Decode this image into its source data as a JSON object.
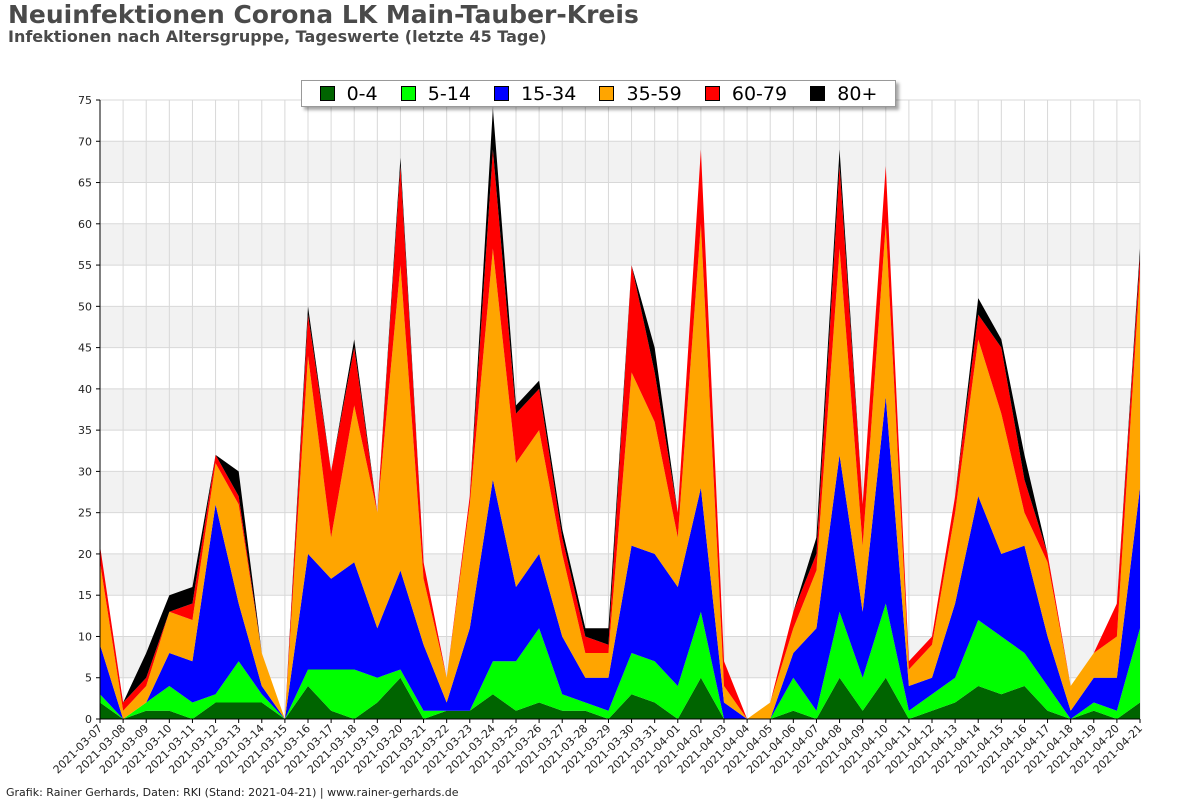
{
  "title": "Neuinfektionen Corona LK Main-Tauber-Kreis",
  "subtitle": "Infektionen nach Altersgruppe, Tageswerte (letzte 45 Tage)",
  "footer": "Grafik: Rainer Gerhards, Daten: RKI (Stand: 2021-04-21) | www.rainer-gerhards.de",
  "chart_data": {
    "type": "area",
    "stacked": true,
    "ylim": [
      0,
      75
    ],
    "yticks": [
      0,
      5,
      10,
      15,
      20,
      25,
      30,
      35,
      40,
      45,
      50,
      55,
      60,
      65,
      70,
      75
    ],
    "grid": true,
    "legend_position": "top-center",
    "categories": [
      "2021-03-07",
      "2021-03-08",
      "2021-03-09",
      "2021-03-10",
      "2021-03-11",
      "2021-03-12",
      "2021-03-13",
      "2021-03-14",
      "2021-03-15",
      "2021-03-16",
      "2021-03-17",
      "2021-03-18",
      "2021-03-19",
      "2021-03-20",
      "2021-03-21",
      "2021-03-22",
      "2021-03-23",
      "2021-03-24",
      "2021-03-25",
      "2021-03-26",
      "2021-03-27",
      "2021-03-28",
      "2021-03-29",
      "2021-03-30",
      "2021-03-31",
      "2021-04-01",
      "2021-04-02",
      "2021-04-03",
      "2021-04-04",
      "2021-04-05",
      "2021-04-06",
      "2021-04-07",
      "2021-04-08",
      "2021-04-09",
      "2021-04-10",
      "2021-04-11",
      "2021-04-12",
      "2021-04-13",
      "2021-04-14",
      "2021-04-15",
      "2021-04-16",
      "2021-04-17",
      "2021-04-18",
      "2021-04-19",
      "2021-04-20",
      "2021-04-21"
    ],
    "series": [
      {
        "name": "0-4",
        "color": "#006400",
        "values": [
          2,
          0,
          1,
          1,
          0,
          2,
          2,
          2,
          0,
          4,
          1,
          0,
          2,
          5,
          0,
          1,
          1,
          3,
          1,
          2,
          1,
          1,
          0,
          3,
          2,
          0,
          5,
          0,
          0,
          0,
          1,
          0,
          5,
          1,
          5,
          0,
          1,
          2,
          4,
          3,
          4,
          1,
          0,
          1,
          0,
          2
        ]
      },
      {
        "name": "5-14",
        "color": "#00ff00",
        "values": [
          1,
          0,
          1,
          3,
          2,
          1,
          5,
          1,
          0,
          2,
          5,
          6,
          3,
          1,
          1,
          0,
          0,
          4,
          6,
          9,
          2,
          1,
          1,
          5,
          5,
          4,
          8,
          0,
          0,
          0,
          4,
          1,
          8,
          4,
          9,
          1,
          2,
          3,
          8,
          7,
          4,
          3,
          0,
          1,
          1,
          9
        ]
      },
      {
        "name": "15-34",
        "color": "#0000ff",
        "values": [
          6,
          0,
          0,
          4,
          5,
          23,
          7,
          1,
          0,
          14,
          11,
          13,
          6,
          12,
          8,
          1,
          10,
          22,
          9,
          9,
          7,
          3,
          4,
          13,
          13,
          12,
          15,
          2,
          0,
          0,
          3,
          10,
          19,
          8,
          25,
          3,
          2,
          9,
          15,
          10,
          13,
          6,
          1,
          3,
          4,
          17
        ]
      },
      {
        "name": "35-59",
        "color": "#ffa500",
        "values": [
          10,
          1,
          2,
          5,
          5,
          5,
          12,
          4,
          0,
          24,
          5,
          19,
          14,
          37,
          8,
          3,
          15,
          28,
          15,
          15,
          10,
          3,
          3,
          21,
          16,
          6,
          32,
          2,
          0,
          2,
          3,
          7,
          25,
          8,
          21,
          2,
          4,
          11,
          19,
          17,
          4,
          9,
          3,
          3,
          5,
          26
        ]
      },
      {
        "name": "60-79",
        "color": "#ff0000",
        "values": [
          2,
          1,
          1,
          0,
          2,
          1,
          1,
          0,
          0,
          5,
          8,
          7,
          0,
          12,
          2,
          0,
          1,
          12,
          6,
          5,
          2,
          2,
          1,
          13,
          6,
          3,
          9,
          3,
          0,
          0,
          2,
          2,
          10,
          5,
          7,
          1,
          1,
          2,
          3,
          8,
          4,
          1,
          0,
          0,
          4,
          2
        ]
      },
      {
        "name": "80+",
        "color": "#000000",
        "values": [
          0,
          0,
          3,
          2,
          2,
          0,
          3,
          0,
          0,
          1,
          0,
          1,
          0,
          1,
          0,
          0,
          0,
          5,
          1,
          1,
          1,
          1,
          2,
          0,
          3,
          0,
          0,
          0,
          0,
          0,
          0,
          2,
          2,
          0,
          0,
          0,
          0,
          0,
          2,
          1,
          3,
          0,
          0,
          0,
          0,
          1
        ]
      }
    ]
  }
}
